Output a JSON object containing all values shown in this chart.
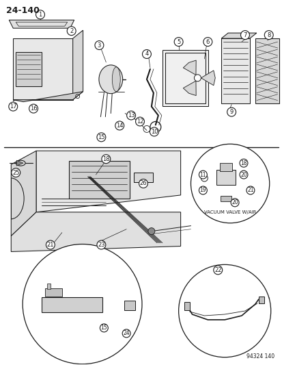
{
  "page_number": "24-140",
  "doc_number": "94324 140",
  "background_color": "#ffffff",
  "line_color": "#1a1a1a",
  "figsize": [
    4.14,
    5.33
  ],
  "dpi": 100,
  "vacuum_valve_label": "VACUUM VALVE W/AIR"
}
